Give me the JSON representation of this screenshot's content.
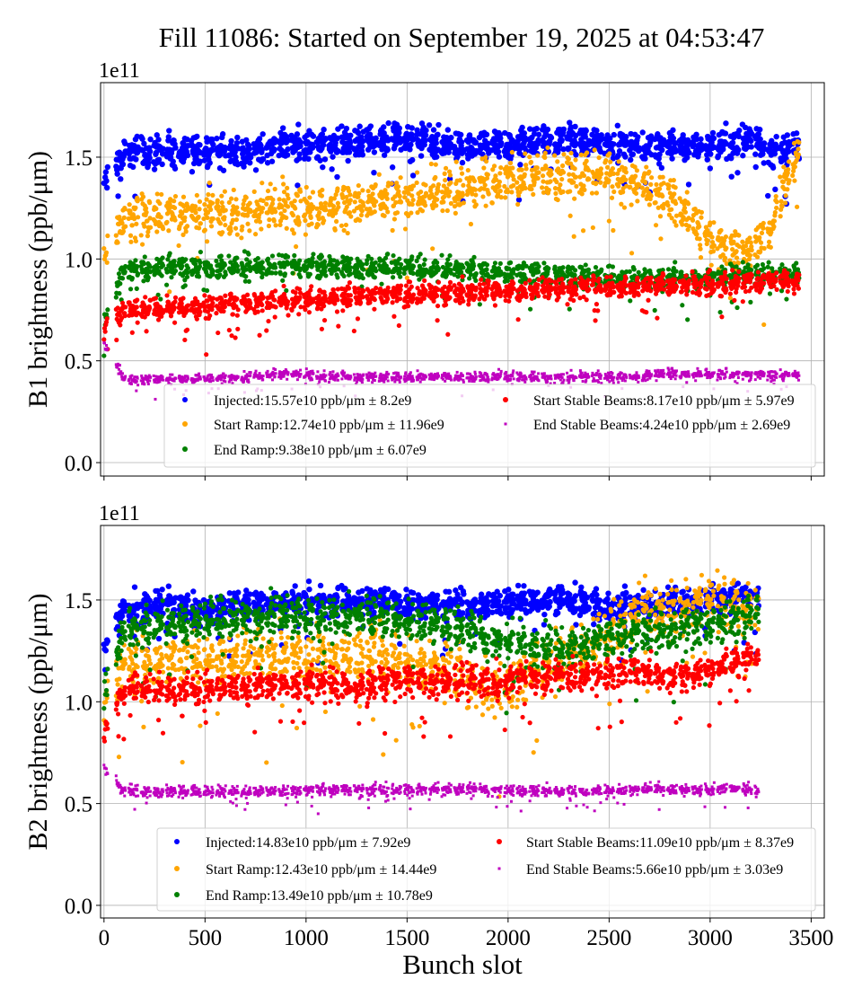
{
  "figure_title": "Fill 11086: Started on September 19, 2025 at 04:53:47",
  "chart_data": [
    {
      "type": "scatter",
      "ylabel": "B1 brightness (ppb/μm)",
      "xlabel": "",
      "offset_text": "1e11",
      "xlim": [
        -17,
        3565
      ],
      "ylim": [
        -0.066,
        1.866
      ],
      "xticks": [
        0,
        500,
        1000,
        1500,
        2000,
        2500,
        3000,
        3500
      ],
      "xtick_labels_visible": false,
      "yticks": [
        0.0,
        0.5,
        1.0,
        1.5
      ],
      "ytick_labels": [
        "0.0",
        "0.5",
        "1.0",
        "1.5"
      ],
      "grid": true,
      "legend_placement": "lower-right",
      "last_slot": 3440,
      "trend_x": [
        0,
        100,
        300,
        500,
        700,
        900,
        1100,
        1300,
        1500,
        1700,
        1900,
        2100,
        2300,
        2500,
        2650,
        2800,
        2900,
        3000,
        3100,
        3200,
        3300,
        3400,
        3440
      ],
      "series": [
        {
          "name": "Injected:15.57e10 ppb/μm ± 8.2e9",
          "color": "#0000ff",
          "marker": "circle",
          "std": 0.082,
          "y": [
            1.38,
            1.52,
            1.53,
            1.53,
            1.52,
            1.56,
            1.55,
            1.59,
            1.6,
            1.56,
            1.56,
            1.57,
            1.58,
            1.58,
            1.55,
            1.55,
            1.55,
            1.56,
            1.57,
            1.6,
            1.52,
            1.53,
            1.55
          ]
        },
        {
          "name": "Start Ramp:12.74e10 ppb/μm ± 11.96e9",
          "color": "#ffa500",
          "marker": "circle",
          "std": 0.1196,
          "y": [
            1.0,
            1.2,
            1.21,
            1.22,
            1.23,
            1.25,
            1.26,
            1.28,
            1.3,
            1.34,
            1.37,
            1.4,
            1.43,
            1.41,
            1.36,
            1.3,
            1.2,
            1.1,
            1.05,
            1.04,
            1.15,
            1.45,
            1.57
          ]
        },
        {
          "name": "End Ramp:9.38e10 ppb/μm ± 6.07e9",
          "color": "#008000",
          "marker": "circle",
          "std": 0.0607,
          "y": [
            0.7,
            0.95,
            0.96,
            0.96,
            0.96,
            0.97,
            0.96,
            0.96,
            0.96,
            0.95,
            0.94,
            0.93,
            0.92,
            0.91,
            0.9,
            0.9,
            0.9,
            0.91,
            0.92,
            0.93,
            0.92,
            0.92,
            0.92
          ]
        },
        {
          "name": "Start Stable Beams:8.17e10 ppb/μm ± 5.97e9",
          "color": "#ff0000",
          "marker": "circle",
          "std": 0.0597,
          "y": [
            0.65,
            0.75,
            0.76,
            0.77,
            0.78,
            0.8,
            0.81,
            0.82,
            0.83,
            0.83,
            0.84,
            0.85,
            0.86,
            0.86,
            0.87,
            0.87,
            0.87,
            0.88,
            0.88,
            0.89,
            0.89,
            0.89,
            0.89
          ]
        },
        {
          "name": "End Stable Beams:4.24e10 ppb/μm ± 2.69e9",
          "color": "#bf00bf",
          "marker": "point",
          "std": 0.0269,
          "y": [
            0.58,
            0.41,
            0.41,
            0.41,
            0.42,
            0.44,
            0.42,
            0.42,
            0.42,
            0.42,
            0.42,
            0.42,
            0.42,
            0.42,
            0.42,
            0.44,
            0.43,
            0.43,
            0.43,
            0.43,
            0.43,
            0.43,
            0.43
          ]
        }
      ]
    },
    {
      "type": "scatter",
      "ylabel": "B2 brightness (ppb/μm)",
      "xlabel": "Bunch slot",
      "offset_text": "1e11",
      "xlim": [
        -17,
        3565
      ],
      "ylim": [
        -0.062,
        1.866
      ],
      "xticks": [
        0,
        500,
        1000,
        1500,
        2000,
        2500,
        3000,
        3500
      ],
      "xtick_labels": [
        "0",
        "500",
        "1000",
        "1500",
        "2000",
        "2500",
        "3000",
        "3500"
      ],
      "xtick_labels_visible": true,
      "yticks": [
        0.0,
        0.5,
        1.0,
        1.5
      ],
      "ytick_labels": [
        "0.0",
        "0.5",
        "1.0",
        "1.5"
      ],
      "grid": true,
      "legend_placement": "lower-right",
      "last_slot": 3240,
      "trend_x": [
        0,
        100,
        300,
        500,
        700,
        900,
        1100,
        1300,
        1500,
        1700,
        1800,
        1950,
        2100,
        2300,
        2500,
        2650,
        2800,
        3000,
        3100,
        3240
      ],
      "series": [
        {
          "name": "Injected:14.83e10 ppb/μm ± 7.92e9",
          "color": "#0000ff",
          "marker": "circle",
          "std": 0.0792,
          "y": [
            1.28,
            1.45,
            1.47,
            1.46,
            1.47,
            1.48,
            1.49,
            1.5,
            1.48,
            1.48,
            1.47,
            1.48,
            1.5,
            1.5,
            1.46,
            1.47,
            1.48,
            1.5,
            1.5,
            1.52
          ]
        },
        {
          "name": "Start Ramp:12.43e10 ppb/μm ± 14.44e9",
          "color": "#ffa500",
          "marker": "circle",
          "std": 0.1444,
          "y": [
            1.0,
            1.18,
            1.2,
            1.2,
            1.21,
            1.22,
            1.22,
            1.23,
            1.2,
            1.15,
            1.1,
            1.05,
            1.15,
            1.22,
            1.3,
            1.45,
            1.45,
            1.5,
            1.47,
            1.45
          ]
        },
        {
          "name": "End Ramp:13.49e10 ppb/μm ± 10.78e9",
          "color": "#008000",
          "marker": "circle",
          "std": 0.1078,
          "y": [
            1.0,
            1.35,
            1.38,
            1.4,
            1.41,
            1.42,
            1.42,
            1.42,
            1.4,
            1.38,
            1.35,
            1.3,
            1.28,
            1.27,
            1.3,
            1.32,
            1.35,
            1.38,
            1.4,
            1.45
          ]
        },
        {
          "name": "Start Stable Beams:11.09e10 ppb/μm ± 8.37e9",
          "color": "#ff0000",
          "marker": "circle",
          "std": 0.0837,
          "y": [
            0.85,
            1.05,
            1.06,
            1.07,
            1.07,
            1.08,
            1.08,
            1.09,
            1.1,
            1.1,
            1.1,
            1.1,
            1.12,
            1.13,
            1.14,
            1.15,
            1.12,
            1.15,
            1.2,
            1.22
          ]
        },
        {
          "name": "End Stable Beams:5.66e10 ppb/μm ± 3.03e9",
          "color": "#bf00bf",
          "marker": "point",
          "std": 0.0303,
          "y": [
            0.68,
            0.56,
            0.56,
            0.56,
            0.56,
            0.56,
            0.57,
            0.57,
            0.57,
            0.57,
            0.57,
            0.57,
            0.56,
            0.56,
            0.56,
            0.57,
            0.57,
            0.57,
            0.57,
            0.57
          ]
        }
      ]
    }
  ]
}
